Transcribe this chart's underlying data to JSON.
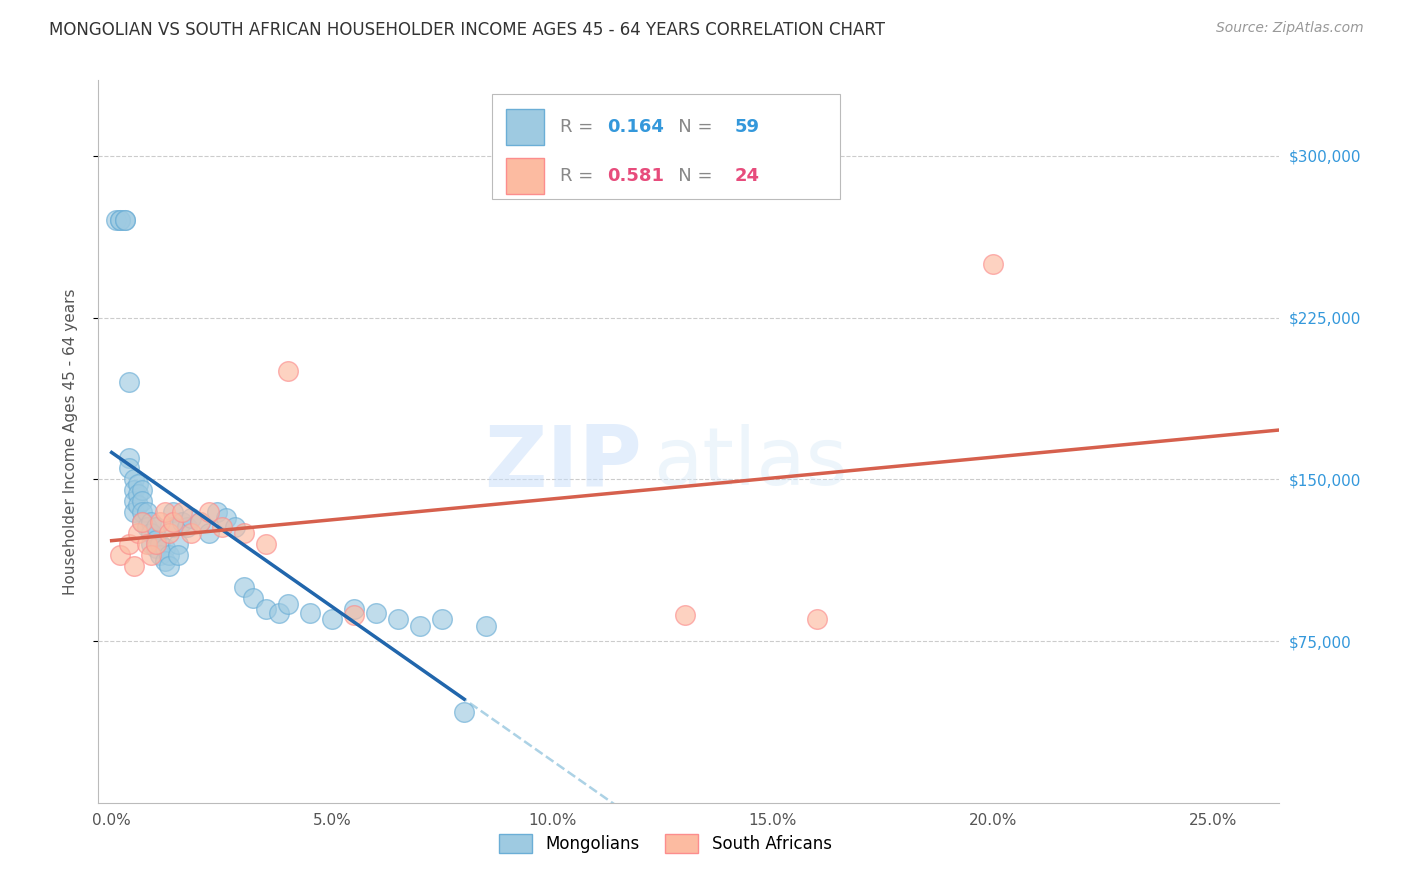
{
  "title": "MONGOLIAN VS SOUTH AFRICAN HOUSEHOLDER INCOME AGES 45 - 64 YEARS CORRELATION CHART",
  "source": "Source: ZipAtlas.com",
  "ylabel": "Householder Income Ages 45 - 64 years",
  "ytick_labels": [
    "$75,000",
    "$150,000",
    "$225,000",
    "$300,000"
  ],
  "ytick_vals": [
    75000,
    150000,
    225000,
    300000
  ],
  "xtick_labels": [
    "0.0%",
    "5.0%",
    "10.0%",
    "15.0%",
    "20.0%",
    "25.0%"
  ],
  "xtick_vals": [
    0.0,
    0.05,
    0.1,
    0.15,
    0.2,
    0.25
  ],
  "mongolian_color": "#9ECAE1",
  "mongolian_edge": "#6BAED6",
  "sa_color": "#FCBBA1",
  "sa_edge": "#FC8D8D",
  "line_mongolian_color": "#2166AC",
  "line_sa_color": "#D6604D",
  "dash_color": "#9ECAE1",
  "r_mongolian": "0.164",
  "n_mongolian": "59",
  "r_sa": "0.581",
  "n_sa": "24",
  "mongo_x": [
    0.001,
    0.002,
    0.002,
    0.003,
    0.003,
    0.004,
    0.004,
    0.004,
    0.005,
    0.005,
    0.005,
    0.005,
    0.006,
    0.006,
    0.006,
    0.007,
    0.007,
    0.007,
    0.007,
    0.008,
    0.008,
    0.009,
    0.009,
    0.009,
    0.01,
    0.01,
    0.01,
    0.011,
    0.011,
    0.012,
    0.012,
    0.013,
    0.013,
    0.014,
    0.014,
    0.015,
    0.015,
    0.016,
    0.017,
    0.018,
    0.02,
    0.022,
    0.024,
    0.026,
    0.028,
    0.03,
    0.032,
    0.035,
    0.038,
    0.04,
    0.045,
    0.05,
    0.055,
    0.06,
    0.065,
    0.07,
    0.075,
    0.08,
    0.085
  ],
  "mongo_y": [
    270000,
    270000,
    270000,
    270000,
    270000,
    195000,
    160000,
    155000,
    150000,
    145000,
    140000,
    135000,
    148000,
    143000,
    138000,
    145000,
    140000,
    135000,
    130000,
    135000,
    128000,
    130000,
    125000,
    120000,
    128000,
    122000,
    118000,
    120000,
    115000,
    118000,
    112000,
    115000,
    110000,
    135000,
    128000,
    120000,
    115000,
    130000,
    128000,
    132000,
    130000,
    125000,
    135000,
    132000,
    128000,
    100000,
    95000,
    90000,
    88000,
    92000,
    88000,
    85000,
    90000,
    88000,
    85000,
    82000,
    85000,
    42000,
    82000
  ],
  "sa_x": [
    0.002,
    0.004,
    0.005,
    0.006,
    0.007,
    0.008,
    0.009,
    0.01,
    0.011,
    0.012,
    0.013,
    0.014,
    0.016,
    0.018,
    0.02,
    0.022,
    0.025,
    0.03,
    0.035,
    0.04,
    0.055,
    0.13,
    0.16,
    0.2
  ],
  "sa_y": [
    115000,
    120000,
    110000,
    125000,
    130000,
    120000,
    115000,
    120000,
    130000,
    135000,
    125000,
    130000,
    135000,
    125000,
    130000,
    135000,
    128000,
    125000,
    120000,
    200000,
    87000,
    87000,
    85000,
    250000
  ],
  "xlim": [
    -0.003,
    0.265
  ],
  "ylim": [
    0,
    335000
  ],
  "mongo_line_xmax": 0.08,
  "bg_color": "#FFFFFF",
  "watermark_zip": "ZIP",
  "watermark_atlas": "atlas",
  "title_fontsize": 12,
  "source_fontsize": 10,
  "tick_fontsize": 11,
  "ylabel_fontsize": 11,
  "legend_fontsize": 13
}
